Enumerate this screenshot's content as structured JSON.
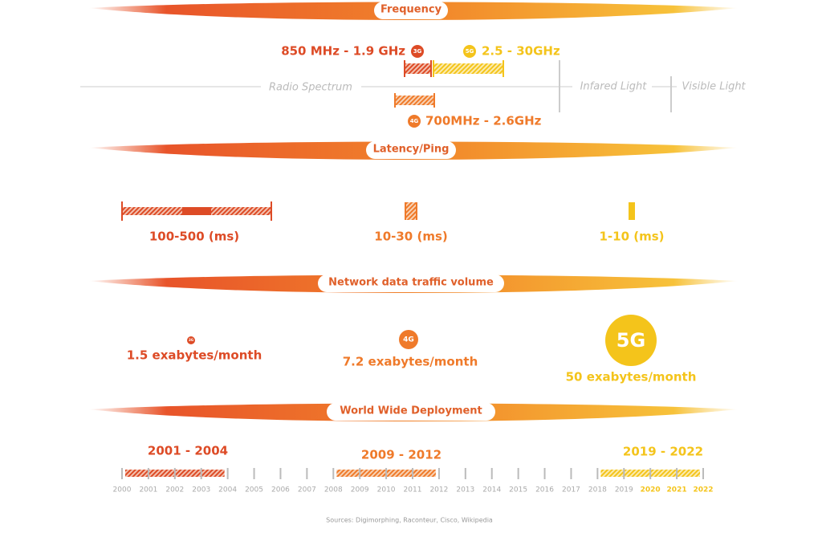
{
  "frequency": {
    "title": "Frequency",
    "g3": {
      "badge": "3G",
      "label": "850 MHz - 1.9 GHz"
    },
    "g5": {
      "badge": "5G",
      "label": "2.5 - 30GHz"
    },
    "g4": {
      "badge": "4G",
      "label": "700MHz - 2.6GHz"
    },
    "spectrum": [
      "Radio Spectrum",
      "Infared Light",
      "Visible Light"
    ]
  },
  "latency": {
    "title": "Latency/Ping",
    "items": [
      "100-500 (ms)",
      "10-30 (ms)",
      "1-10 (ms)"
    ]
  },
  "traffic": {
    "title": "Network data traffic volume",
    "items": [
      {
        "badge": "3G",
        "label": "1.5 exabytes/month"
      },
      {
        "badge": "4G",
        "label": "7.2 exabytes/month"
      },
      {
        "badge": "5G",
        "label": "50 exabytes/month"
      }
    ]
  },
  "deployment": {
    "title": "World Wide Deployment",
    "ranges": [
      "2001 - 2004",
      "2009 - 2012",
      "2019 - 2022"
    ],
    "years": [
      2000,
      2001,
      2002,
      2003,
      2004,
      2005,
      2006,
      2007,
      2008,
      2009,
      2010,
      2011,
      2012,
      2013,
      2014,
      2015,
      2016,
      2017,
      2018,
      2019,
      2020,
      2021,
      2022
    ]
  },
  "sources": "Sources: Digimorphing, Raconteur, Cisco, Wikipedia"
}
